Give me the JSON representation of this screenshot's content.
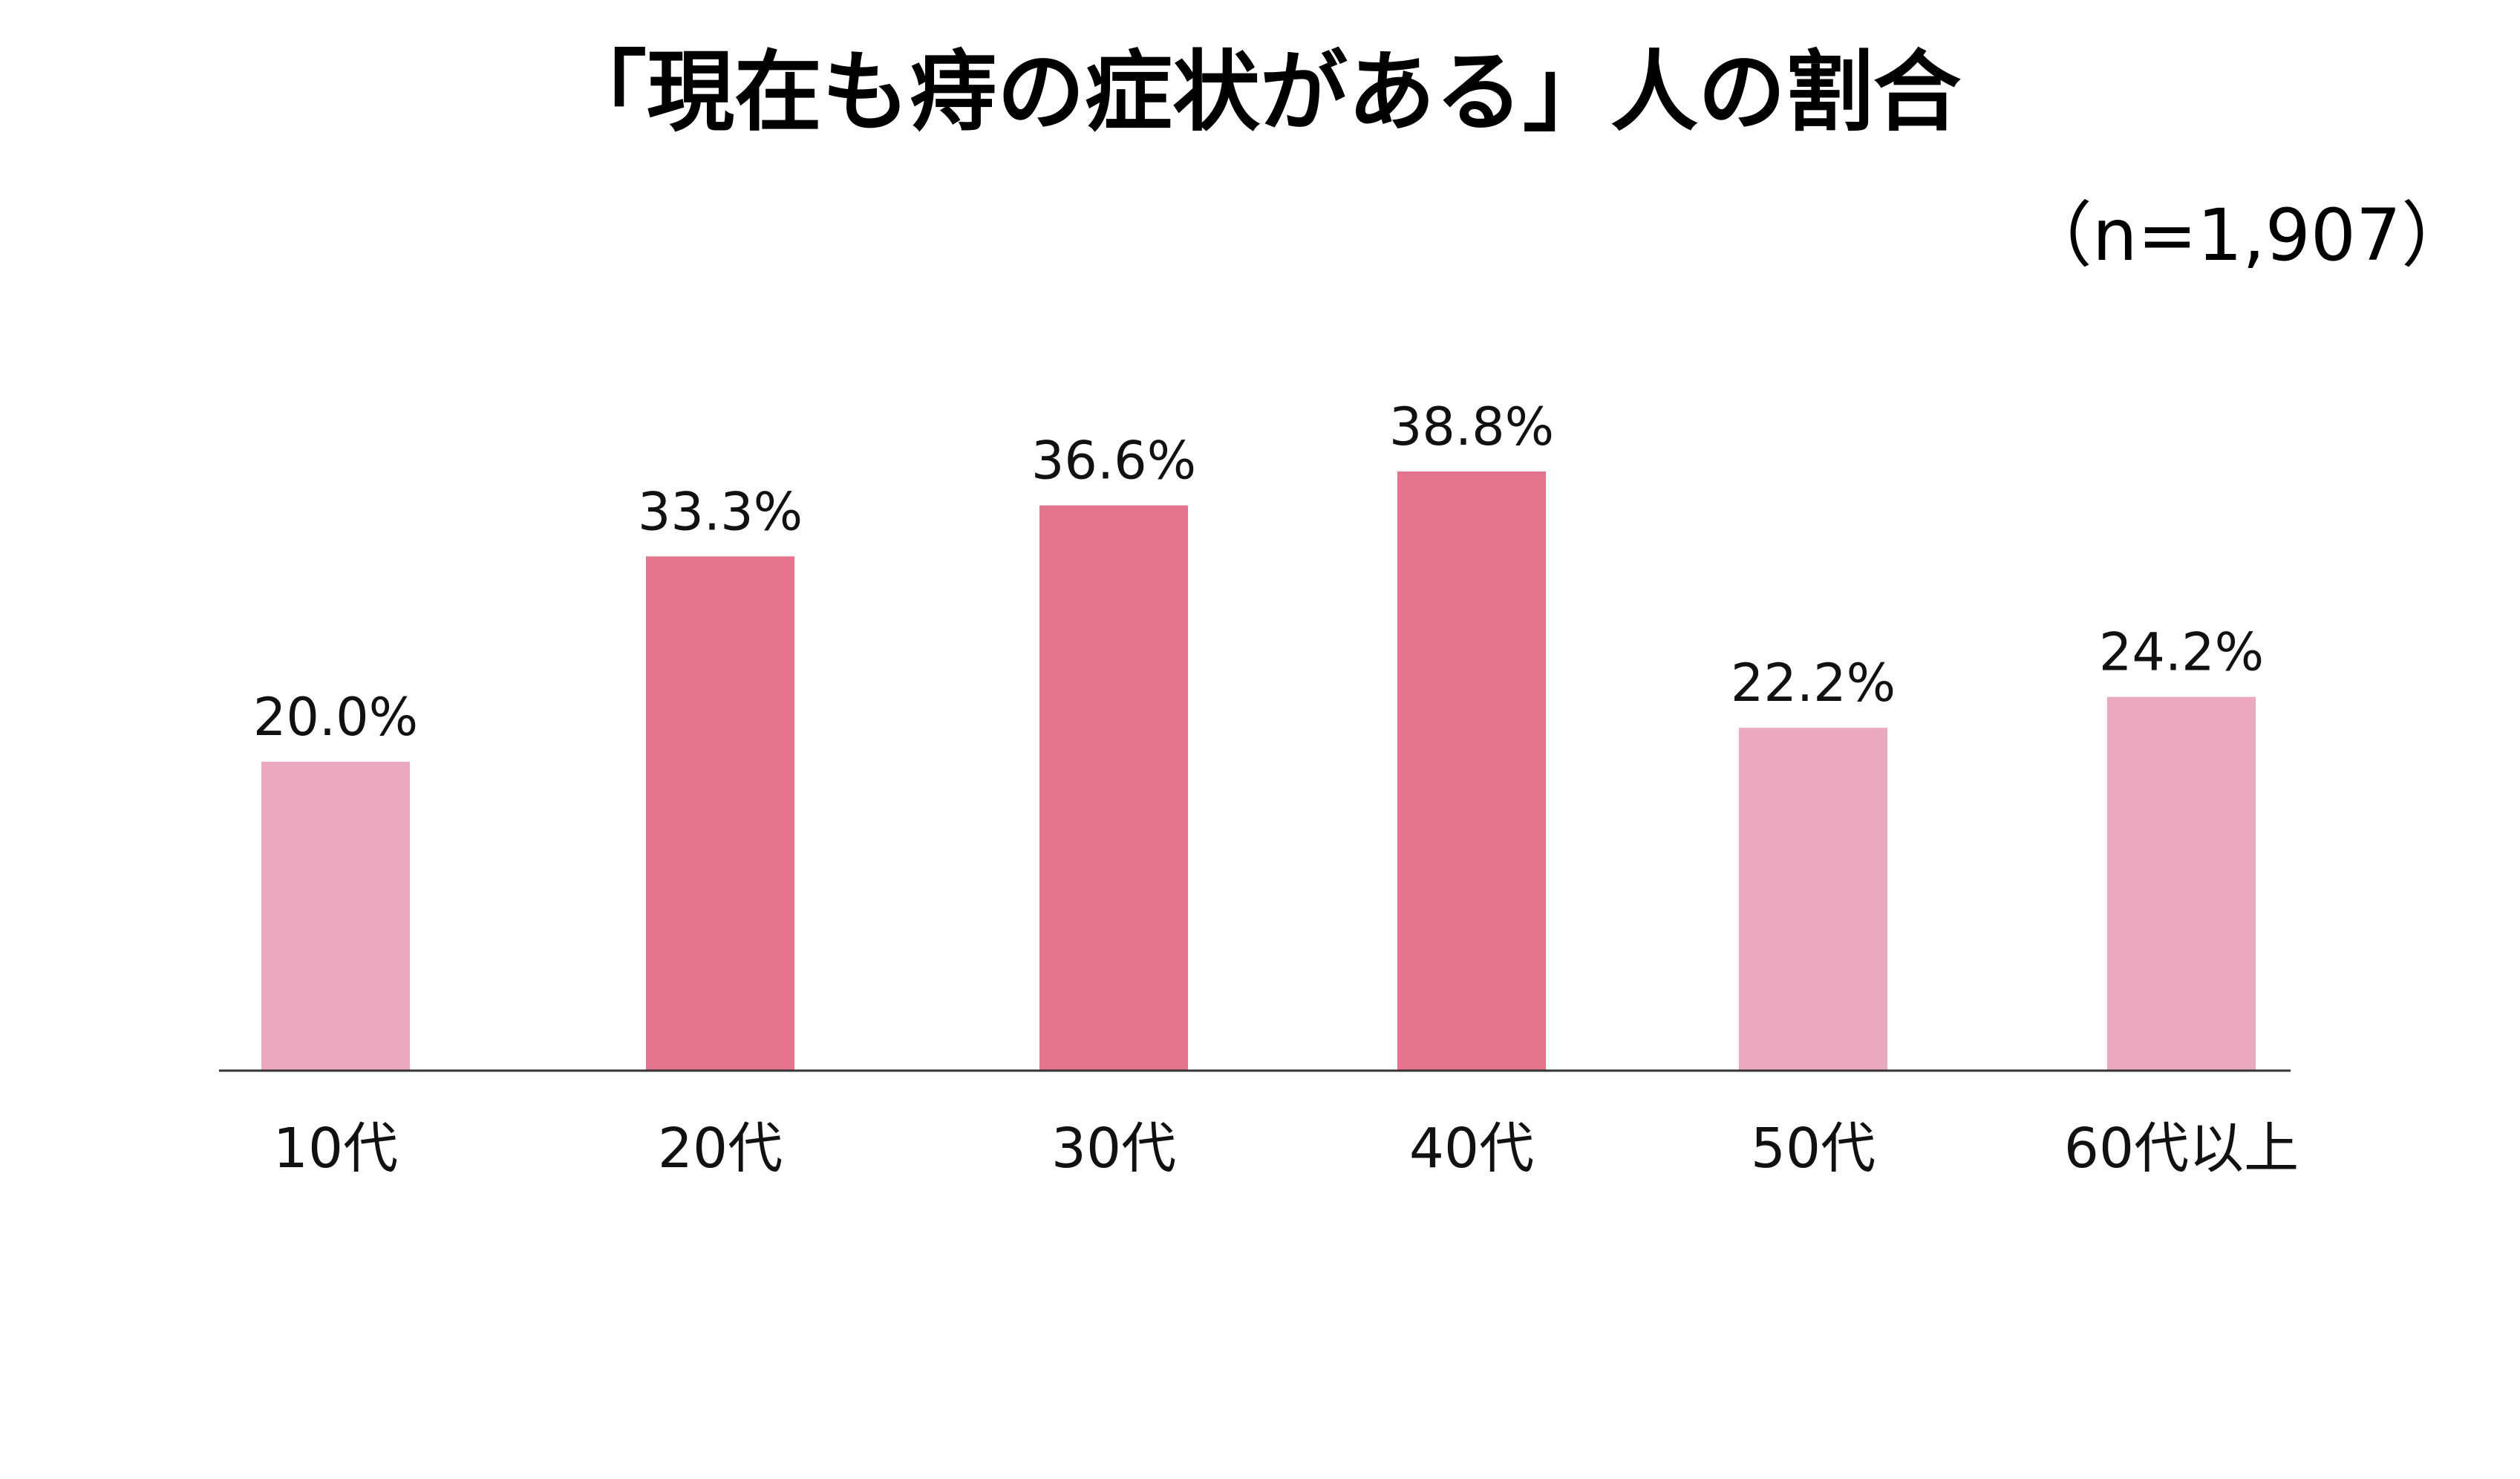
{
  "header": {
    "title": "「現在も痔の症状がある」人の割合",
    "sample_size": "（n=1,907）"
  },
  "colors": {
    "highlight": "#E4738B",
    "normal": "#EBA8BF",
    "axis": "#333333"
  },
  "chart_data": {
    "type": "bar",
    "title": "「現在も痔の症状がある」人の割合",
    "subtitle": "（n=1,907）",
    "xlabel": "",
    "ylabel": "",
    "unit": "%",
    "ylim": [
      0,
      45
    ],
    "grid": false,
    "categories": [
      "10代",
      "20代",
      "30代",
      "40代",
      "50代",
      "60代以上"
    ],
    "values": [
      20.0,
      33.3,
      36.6,
      38.8,
      22.2,
      24.2
    ],
    "value_labels": [
      "20.0%",
      "33.3%",
      "36.6%",
      "38.8%",
      "22.2%",
      "24.2%"
    ],
    "highlighted": [
      false,
      true,
      true,
      true,
      false,
      false
    ]
  }
}
